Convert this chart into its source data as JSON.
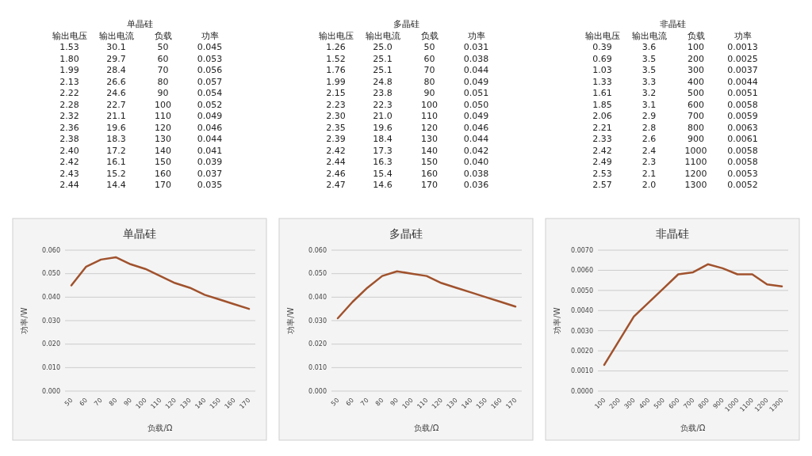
{
  "chart_data": [
    {
      "type": "heatmap",
      "title": "单晶硅",
      "ylabel": "负载",
      "categories": [
        "输出电压",
        "输出电流",
        "功率"
      ],
      "y_categories": [
        "50",
        "60",
        "70",
        "80",
        "90",
        "100",
        "110",
        "120",
        "130",
        "140",
        "150",
        "160",
        "170"
      ],
      "cells": [
        [
          1.53,
          30.1,
          0.045
        ],
        [
          1.8,
          29.7,
          0.053
        ],
        [
          1.99,
          28.4,
          0.056
        ],
        [
          2.13,
          26.6,
          0.057
        ],
        [
          2.22,
          24.6,
          0.054
        ],
        [
          2.28,
          22.7,
          0.052
        ],
        [
          2.32,
          21.1,
          0.049
        ],
        [
          2.36,
          19.6,
          0.046
        ],
        [
          2.38,
          18.3,
          0.044
        ],
        [
          2.4,
          17.2,
          0.041
        ],
        [
          2.42,
          16.1,
          0.039
        ],
        [
          2.43,
          15.2,
          0.037
        ],
        [
          2.44,
          14.4,
          0.035
        ]
      ],
      "cell_labels": [
        [
          "1.53",
          "30.1",
          "0.045"
        ],
        [
          "1.80",
          "29.7",
          "0.053"
        ],
        [
          "1.99",
          "28.4",
          "0.056"
        ],
        [
          "2.13",
          "26.6",
          "0.057"
        ],
        [
          "2.22",
          "24.6",
          "0.054"
        ],
        [
          "2.28",
          "22.7",
          "0.052"
        ],
        [
          "2.32",
          "21.1",
          "0.049"
        ],
        [
          "2.36",
          "19.6",
          "0.046"
        ],
        [
          "2.38",
          "18.3",
          "0.044"
        ],
        [
          "2.40",
          "17.2",
          "0.041"
        ],
        [
          "2.42",
          "16.1",
          "0.039"
        ],
        [
          "2.43",
          "15.2",
          "0.037"
        ],
        [
          "2.44",
          "14.4",
          "0.035"
        ]
      ]
    },
    {
      "type": "heatmap",
      "title": "多晶硅",
      "ylabel": "负载",
      "categories": [
        "输出电压",
        "输出电流",
        "功率"
      ],
      "y_categories": [
        "50",
        "60",
        "70",
        "80",
        "90",
        "100",
        "110",
        "120",
        "130",
        "140",
        "150",
        "160",
        "170"
      ],
      "cells": [
        [
          1.26,
          25.0,
          0.031
        ],
        [
          1.52,
          25.1,
          0.038
        ],
        [
          1.76,
          25.1,
          0.044
        ],
        [
          1.99,
          24.8,
          0.049
        ],
        [
          2.15,
          23.8,
          0.051
        ],
        [
          2.23,
          22.3,
          0.05
        ],
        [
          2.3,
          21.0,
          0.049
        ],
        [
          2.35,
          19.6,
          0.046
        ],
        [
          2.39,
          18.4,
          0.044
        ],
        [
          2.42,
          17.3,
          0.042
        ],
        [
          2.44,
          16.3,
          0.04
        ],
        [
          2.46,
          15.4,
          0.038
        ],
        [
          2.47,
          14.6,
          0.036
        ]
      ],
      "cell_labels": [
        [
          "1.26",
          "25.0",
          "0.031"
        ],
        [
          "1.52",
          "25.1",
          "0.038"
        ],
        [
          "1.76",
          "25.1",
          "0.044"
        ],
        [
          "1.99",
          "24.8",
          "0.049"
        ],
        [
          "2.15",
          "23.8",
          "0.051"
        ],
        [
          "2.23",
          "22.3",
          "0.050"
        ],
        [
          "2.30",
          "21.0",
          "0.049"
        ],
        [
          "2.35",
          "19.6",
          "0.046"
        ],
        [
          "2.39",
          "18.4",
          "0.044"
        ],
        [
          "2.42",
          "17.3",
          "0.042"
        ],
        [
          "2.44",
          "16.3",
          "0.040"
        ],
        [
          "2.46",
          "15.4",
          "0.038"
        ],
        [
          "2.47",
          "14.6",
          "0.036"
        ]
      ]
    },
    {
      "type": "heatmap",
      "title": "非晶硅",
      "ylabel": "负载",
      "categories": [
        "输出电压",
        "输出电流",
        "功率"
      ],
      "y_categories": [
        "100",
        "200",
        "300",
        "400",
        "500",
        "600",
        "700",
        "800",
        "900",
        "1000",
        "1100",
        "1200",
        "1300"
      ],
      "cells": [
        [
          0.39,
          3.6,
          0.0013
        ],
        [
          0.69,
          3.5,
          0.0025
        ],
        [
          1.03,
          3.5,
          0.0037
        ],
        [
          1.33,
          3.3,
          0.0044
        ],
        [
          1.61,
          3.2,
          0.0051
        ],
        [
          1.85,
          3.1,
          0.0058
        ],
        [
          2.06,
          2.9,
          0.0059
        ],
        [
          2.21,
          2.8,
          0.0063
        ],
        [
          2.33,
          2.6,
          0.0061
        ],
        [
          2.42,
          2.4,
          0.0058
        ],
        [
          2.49,
          2.3,
          0.0058
        ],
        [
          2.53,
          2.1,
          0.0053
        ],
        [
          2.57,
          2.0,
          0.0052
        ]
      ],
      "cell_labels": [
        [
          "0.39",
          "3.6",
          "0.0013"
        ],
        [
          "0.69",
          "3.5",
          "0.0025"
        ],
        [
          "1.03",
          "3.5",
          "0.0037"
        ],
        [
          "1.33",
          "3.3",
          "0.0044"
        ],
        [
          "1.61",
          "3.2",
          "0.0051"
        ],
        [
          "1.85",
          "3.1",
          "0.0058"
        ],
        [
          "2.06",
          "2.9",
          "0.0059"
        ],
        [
          "2.21",
          "2.8",
          "0.0063"
        ],
        [
          "2.33",
          "2.6",
          "0.0061"
        ],
        [
          "2.42",
          "2.4",
          "0.0058"
        ],
        [
          "2.49",
          "2.3",
          "0.0058"
        ],
        [
          "2.53",
          "2.1",
          "0.0053"
        ],
        [
          "2.57",
          "2.0",
          "0.0052"
        ]
      ]
    },
    {
      "type": "line",
      "title": "单晶硅",
      "xlabel": "负载/Ω",
      "ylabel": "功率/W",
      "grid": "y",
      "color": "#a0522d",
      "categories": [
        "50",
        "60",
        "70",
        "80",
        "90",
        "100",
        "110",
        "120",
        "130",
        "140",
        "150",
        "160",
        "170"
      ],
      "values": [
        0.045,
        0.053,
        0.056,
        0.057,
        0.054,
        0.052,
        0.049,
        0.046,
        0.044,
        0.041,
        0.039,
        0.037,
        0.035
      ],
      "ylim": [
        0,
        0.06
      ],
      "yticks": [
        {
          "value": 0,
          "label": "0.000"
        },
        {
          "value": 0.01,
          "label": "0.010"
        },
        {
          "value": 0.02,
          "label": "0.020"
        },
        {
          "value": 0.03,
          "label": "0.030"
        },
        {
          "value": 0.04,
          "label": "0.040"
        },
        {
          "value": 0.05,
          "label": "0.050"
        },
        {
          "value": 0.06,
          "label": "0.060"
        }
      ]
    },
    {
      "type": "line",
      "title": "多晶硅",
      "xlabel": "负载/Ω",
      "ylabel": "功率/W",
      "grid": "y",
      "color": "#a0522d",
      "categories": [
        "50",
        "60",
        "70",
        "80",
        "90",
        "100",
        "110",
        "120",
        "130",
        "140",
        "150",
        "160",
        "170"
      ],
      "values": [
        0.031,
        0.038,
        0.044,
        0.049,
        0.051,
        0.05,
        0.049,
        0.046,
        0.044,
        0.042,
        0.04,
        0.038,
        0.036
      ],
      "ylim": [
        0,
        0.06
      ],
      "yticks": [
        {
          "value": 0,
          "label": "0.000"
        },
        {
          "value": 0.01,
          "label": "0.010"
        },
        {
          "value": 0.02,
          "label": "0.020"
        },
        {
          "value": 0.03,
          "label": "0.030"
        },
        {
          "value": 0.04,
          "label": "0.040"
        },
        {
          "value": 0.05,
          "label": "0.050"
        },
        {
          "value": 0.06,
          "label": "0.060"
        }
      ]
    },
    {
      "type": "line",
      "title": "非晶硅",
      "xlabel": "负载/Ω",
      "ylabel": "功率/W",
      "grid": "y",
      "color": "#a0522d",
      "categories": [
        "100",
        "200",
        "300",
        "400",
        "500",
        "600",
        "700",
        "800",
        "900",
        "1000",
        "1100",
        "1200",
        "1300"
      ],
      "values": [
        0.0013,
        0.0025,
        0.0037,
        0.0044,
        0.0051,
        0.0058,
        0.0059,
        0.0063,
        0.0061,
        0.0058,
        0.0058,
        0.0053,
        0.0052
      ],
      "ylim": [
        0,
        0.007
      ],
      "yticks": [
        {
          "value": 0,
          "label": "0.0000"
        },
        {
          "value": 0.001,
          "label": "0.0010"
        },
        {
          "value": 0.002,
          "label": "0.0020"
        },
        {
          "value": 0.003,
          "label": "0.0030"
        },
        {
          "value": 0.004,
          "label": "0.0040"
        },
        {
          "value": 0.005,
          "label": "0.0050"
        },
        {
          "value": 0.006,
          "label": "0.0060"
        },
        {
          "value": 0.007,
          "label": "0.0070"
        }
      ]
    }
  ]
}
